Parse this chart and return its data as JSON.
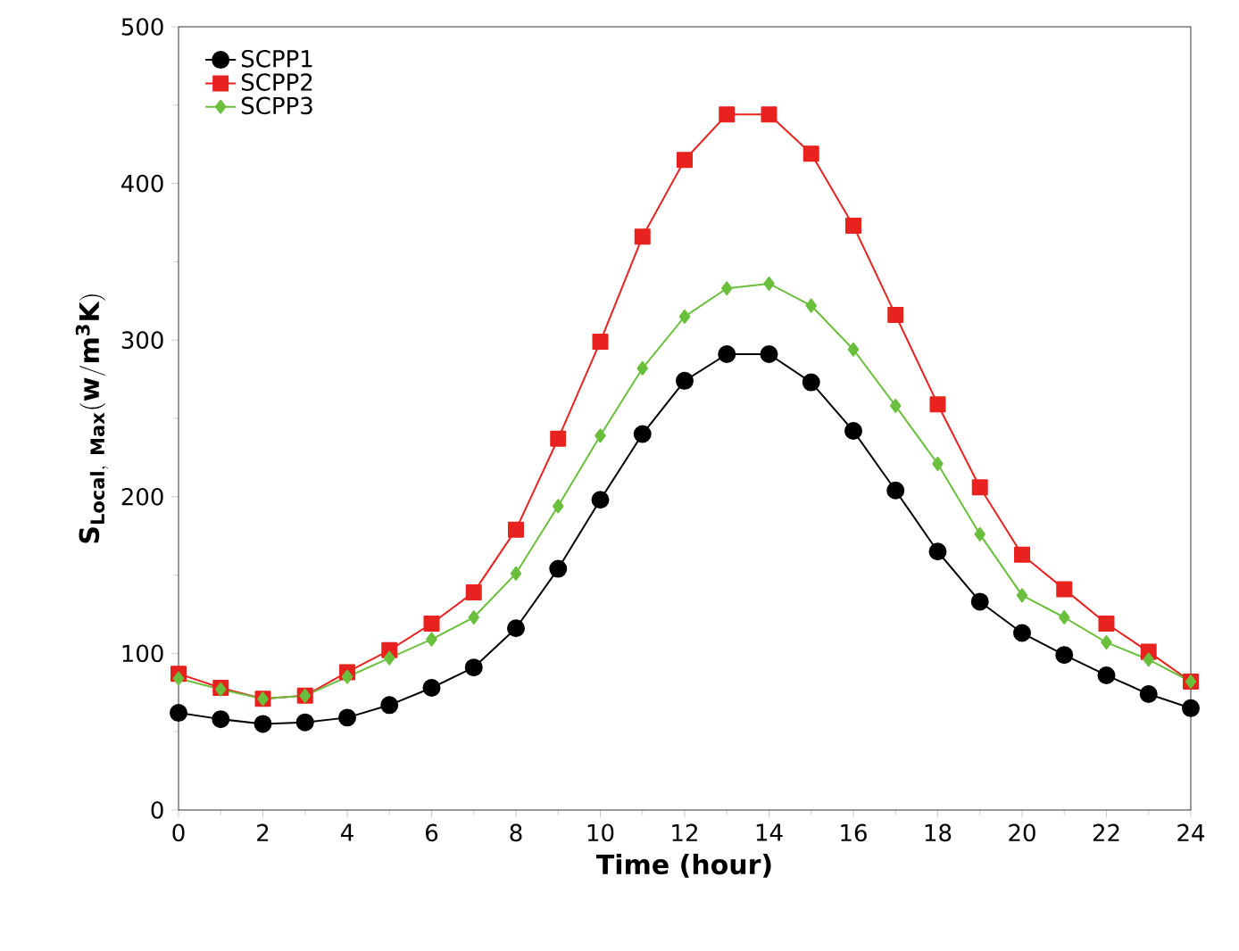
{
  "chart_data": {
    "type": "line",
    "xlabel": "Time (hour)",
    "ylabel": "\\mathbf{S_{Local,\\ Max}(w/m^{3}K)}",
    "x": [
      0,
      1,
      2,
      3,
      4,
      5,
      6,
      7,
      8,
      9,
      10,
      11,
      12,
      13,
      14,
      15,
      16,
      17,
      18,
      19,
      20,
      21,
      22,
      23,
      24
    ],
    "xlim": [
      0,
      24
    ],
    "xticks": [
      0,
      2,
      4,
      6,
      8,
      10,
      12,
      14,
      16,
      18,
      20,
      22,
      24
    ],
    "ylim": [
      0,
      500
    ],
    "yticks": [
      0,
      100,
      200,
      300,
      400,
      500
    ],
    "grid": false,
    "legend": "top left",
    "line_style": "solid",
    "series": [
      {
        "name": "SCPP1",
        "color": "#000000",
        "marker": "circle",
        "values": [
          62,
          58,
          55,
          56,
          59,
          67,
          78,
          91,
          116,
          154,
          198,
          240,
          274,
          291,
          291,
          273,
          242,
          204,
          165,
          133,
          113,
          99,
          86,
          74,
          65
        ]
      },
      {
        "name": "SCPP2",
        "color": "#e8221e",
        "marker": "square",
        "values": [
          87,
          78,
          71,
          73,
          88,
          102,
          119,
          139,
          179,
          237,
          299,
          366,
          415,
          444,
          444,
          419,
          373,
          316,
          259,
          206,
          163,
          141,
          119,
          101,
          82
        ]
      },
      {
        "name": "SCPP3",
        "color": "#6abf3c",
        "marker": "diamond",
        "values": [
          84,
          77,
          71,
          73,
          85,
          97,
          109,
          123,
          151,
          194,
          239,
          282,
          315,
          333,
          336,
          322,
          294,
          258,
          221,
          176,
          137,
          123,
          107,
          96,
          82
        ]
      }
    ]
  }
}
